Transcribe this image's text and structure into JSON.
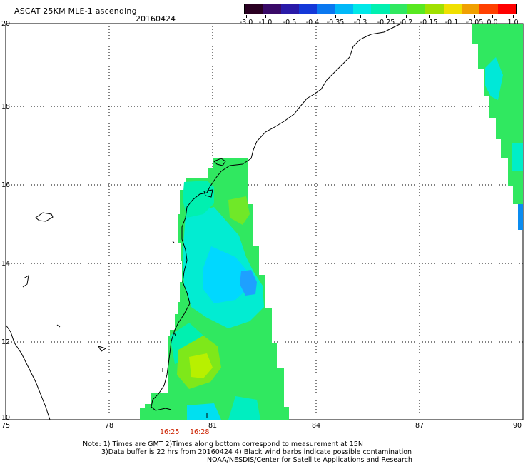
{
  "header": {
    "title": "ASCAT 25KM MLE-1 ascending",
    "date": "20160424"
  },
  "colorbar": {
    "labels": [
      "-3.0",
      "-1.0",
      "-0.5",
      "-0.4",
      "-0.35",
      "-0.3",
      "-0.25",
      "-0.2",
      "-0.15",
      "-0.1",
      "-0.05",
      "0.0",
      "1.0"
    ],
    "colors": [
      "#2a0022",
      "#3a0a68",
      "#2a1aa8",
      "#1438d8",
      "#0a78f0",
      "#00b8f8",
      "#00e8e8",
      "#00f0b0",
      "#30e860",
      "#58e820",
      "#a0e000",
      "#f0e000",
      "#f0a000",
      "#ff4000",
      "#ff0000"
    ]
  },
  "map": {
    "lon_labels": [
      "75",
      "78",
      "81",
      "84",
      "87",
      "90"
    ],
    "lat_labels": [
      "10",
      "12",
      "14",
      "16",
      "18",
      "20"
    ],
    "pass_times": [
      "16:25",
      "16:28"
    ]
  },
  "footer": {
    "line1": "Note: 1) Times are GMT 2)Times along bottom correspond to measurement at 15N",
    "line2": "3)Data buffer is 22 hrs from 20160424 4) Black wind barbs indicate possible contamination",
    "line3": "NOAA/NESDIS/Center for Satellite Applications and Research"
  }
}
